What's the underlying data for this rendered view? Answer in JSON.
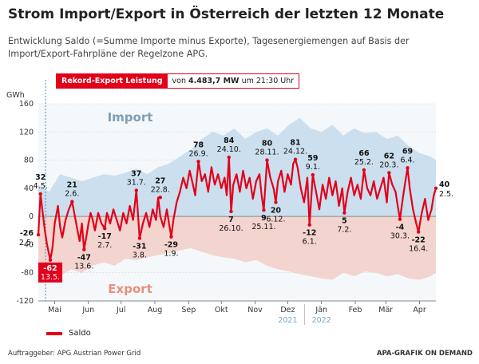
{
  "title": "Strom Import/Export in Österreich der letzten 12 Monate",
  "subtitle": "Entwicklung Saldo (=Summe Importe minus Exporte), Tagesenergiemengen auf Basis der Import/Export-Fahrpläne der Regelzone APG.",
  "record": {
    "label": "Rekord-Export Leistung",
    "prefix": "von",
    "value": "4.483,7 MW",
    "suffix": "um 21:30 Uhr"
  },
  "legend": {
    "saldo": "Saldo"
  },
  "footer": {
    "left": "Auftraggeber: APG Austrian Power Grid",
    "right": "APA-GRAFIK ON DEMAND"
  },
  "colors": {
    "saldo": "#e2001a",
    "import": "#a9cbe3",
    "export": "#f3b6aa",
    "grid": "#d6d6d6"
  },
  "chart_data": {
    "type": "line",
    "ylabel": "GWh",
    "ylim": [
      -120,
      160
    ],
    "yticks": [
      -120,
      -80,
      -40,
      0,
      40,
      80,
      120,
      160
    ],
    "x_range": [
      0,
      365
    ],
    "region_labels": {
      "import": "Import",
      "export": "Export"
    },
    "month_ticks": [
      {
        "label": "Mai",
        "x": 15
      },
      {
        "label": "Jun",
        "x": 46
      },
      {
        "label": "Jul",
        "x": 76
      },
      {
        "label": "Aug",
        "x": 107
      },
      {
        "label": "Sep",
        "x": 138
      },
      {
        "label": "Okt",
        "x": 168
      },
      {
        "label": "Nov",
        "x": 199
      },
      {
        "label": "Dez",
        "x": 229
      },
      {
        "label": "Jän",
        "x": 260
      },
      {
        "label": "Feb",
        "x": 291
      },
      {
        "label": "Mär",
        "x": 319
      },
      {
        "label": "Apr",
        "x": 350
      }
    ],
    "year_labels": [
      {
        "label": "2021",
        "x": 229
      },
      {
        "label": "2022",
        "x": 260
      }
    ],
    "annotations": [
      {
        "value": "-26",
        "date": "2.5.",
        "x": 0,
        "y": -26,
        "pos": "left"
      },
      {
        "value": "32",
        "date": "4.5.",
        "x": 2,
        "y": 32,
        "pos": "above"
      },
      {
        "value": "-62",
        "date": "13.5.",
        "x": 11,
        "y": -62,
        "pos": "boxed"
      },
      {
        "value": "21",
        "date": "2.6.",
        "x": 31,
        "y": 21,
        "pos": "above"
      },
      {
        "value": "-47",
        "date": "13.6.",
        "x": 42,
        "y": -47,
        "pos": "below"
      },
      {
        "value": "-17",
        "date": "2.7.",
        "x": 61,
        "y": -17,
        "pos": "below"
      },
      {
        "value": "37",
        "date": "31.7.",
        "x": 90,
        "y": 37,
        "pos": "above"
      },
      {
        "value": "-31",
        "date": "3.8.",
        "x": 93,
        "y": -31,
        "pos": "below"
      },
      {
        "value": "27",
        "date": "22.8.",
        "x": 112,
        "y": 27,
        "pos": "above"
      },
      {
        "value": "-29",
        "date": "1.9.",
        "x": 122,
        "y": -29,
        "pos": "below"
      },
      {
        "value": "78",
        "date": "26.9.",
        "x": 147,
        "y": 78,
        "pos": "above"
      },
      {
        "value": "84",
        "date": "24.10.",
        "x": 175,
        "y": 84,
        "pos": "above"
      },
      {
        "value": "7",
        "date": "26.10.",
        "x": 177,
        "y": 7,
        "pos": "below"
      },
      {
        "value": "80",
        "date": "28.11.",
        "x": 210,
        "y": 80,
        "pos": "above"
      },
      {
        "value": "9",
        "date": "25.11.",
        "x": 207,
        "y": 9,
        "pos": "below"
      },
      {
        "value": "81",
        "date": "24.12.",
        "x": 236,
        "y": 81,
        "pos": "above"
      },
      {
        "value": "20",
        "date": "6.12.",
        "x": 218,
        "y": 20,
        "pos": "below"
      },
      {
        "value": "59",
        "date": "9.1.",
        "x": 252,
        "y": 59,
        "pos": "above"
      },
      {
        "value": "-12",
        "date": "6.1.",
        "x": 249,
        "y": -12,
        "pos": "below"
      },
      {
        "value": "5",
        "date": "7.2.",
        "x": 281,
        "y": 5,
        "pos": "below"
      },
      {
        "value": "66",
        "date": "25.2.",
        "x": 299,
        "y": 66,
        "pos": "above"
      },
      {
        "value": "62",
        "date": "20.3.",
        "x": 322,
        "y": 62,
        "pos": "above"
      },
      {
        "value": "-4",
        "date": "30.3.",
        "x": 332,
        "y": -4,
        "pos": "below"
      },
      {
        "value": "69",
        "date": "6.4.",
        "x": 339,
        "y": 69,
        "pos": "above"
      },
      {
        "value": "-22",
        "date": "16.4.",
        "x": 349,
        "y": -22,
        "pos": "below"
      },
      {
        "value": "40",
        "date": "2.5.",
        "x": 365,
        "y": 40,
        "pos": "right"
      }
    ],
    "series": [
      {
        "name": "Saldo",
        "x": [
          0,
          2,
          4,
          6,
          8,
          11,
          13,
          15,
          18,
          20,
          22,
          25,
          28,
          31,
          33,
          36,
          38,
          40,
          42,
          44,
          46,
          48,
          50,
          52,
          55,
          58,
          61,
          63,
          66,
          69,
          72,
          75,
          78,
          81,
          84,
          87,
          90,
          93,
          96,
          99,
          102,
          105,
          108,
          110,
          112,
          115,
          118,
          120,
          122,
          124,
          127,
          130,
          133,
          136,
          139,
          142,
          144,
          147,
          150,
          153,
          156,
          159,
          162,
          165,
          168,
          171,
          173,
          175,
          177,
          179,
          182,
          185,
          188,
          191,
          194,
          197,
          200,
          203,
          205,
          207,
          210,
          213,
          216,
          218,
          220,
          223,
          226,
          229,
          232,
          234,
          236,
          238,
          241,
          244,
          247,
          249,
          252,
          255,
          258,
          261,
          264,
          267,
          270,
          273,
          276,
          279,
          281,
          284,
          287,
          290,
          293,
          296,
          299,
          302,
          305,
          308,
          311,
          314,
          317,
          320,
          322,
          325,
          328,
          330,
          332,
          335,
          337,
          339,
          341,
          344,
          347,
          349,
          352,
          355,
          358,
          361,
          363,
          365
        ],
        "y": [
          -26,
          32,
          5,
          -20,
          -40,
          -62,
          -45,
          -10,
          15,
          -15,
          -30,
          -5,
          10,
          21,
          5,
          -20,
          -35,
          -10,
          -47,
          -30,
          -10,
          5,
          -5,
          -20,
          5,
          -10,
          -17,
          5,
          -10,
          10,
          -5,
          -20,
          5,
          -10,
          15,
          -5,
          37,
          -31,
          -10,
          5,
          -15,
          10,
          -5,
          27,
          0,
          -15,
          10,
          -10,
          -29,
          -5,
          20,
          35,
          55,
          40,
          65,
          45,
          30,
          78,
          50,
          60,
          35,
          70,
          45,
          60,
          40,
          55,
          30,
          84,
          7,
          45,
          60,
          35,
          65,
          40,
          55,
          25,
          50,
          60,
          30,
          9,
          80,
          55,
          40,
          20,
          50,
          65,
          35,
          60,
          45,
          75,
          81,
          70,
          40,
          20,
          55,
          -12,
          59,
          35,
          10,
          45,
          25,
          55,
          30,
          50,
          15,
          40,
          5,
          35,
          55,
          30,
          45,
          25,
          66,
          40,
          30,
          50,
          25,
          40,
          55,
          20,
          62,
          45,
          35,
          15,
          -4,
          30,
          50,
          69,
          40,
          10,
          -10,
          -22,
          5,
          25,
          -5,
          10,
          30,
          40
        ]
      },
      {
        "name": "Import",
        "x": [
          0,
          10,
          20,
          30,
          40,
          50,
          60,
          70,
          80,
          90,
          100,
          110,
          120,
          130,
          140,
          150,
          160,
          170,
          180,
          190,
          200,
          210,
          220,
          230,
          240,
          250,
          260,
          270,
          280,
          290,
          300,
          310,
          320,
          330,
          340,
          350,
          360,
          365
        ],
        "y": [
          45,
          35,
          60,
          55,
          50,
          55,
          60,
          58,
          62,
          68,
          60,
          70,
          75,
          85,
          95,
          110,
          120,
          115,
          125,
          110,
          120,
          125,
          115,
          130,
          140,
          125,
          120,
          130,
          115,
          125,
          118,
          120,
          110,
          115,
          100,
          90,
          85,
          80
        ]
      },
      {
        "name": "Export",
        "x": [
          0,
          10,
          20,
          30,
          40,
          50,
          60,
          70,
          80,
          90,
          100,
          110,
          120,
          130,
          140,
          150,
          160,
          170,
          180,
          190,
          200,
          210,
          220,
          230,
          240,
          250,
          260,
          270,
          280,
          290,
          300,
          310,
          320,
          330,
          340,
          350,
          360,
          365
        ],
        "y": [
          -80,
          -90,
          -85,
          -75,
          -80,
          -70,
          -65,
          -70,
          -60,
          -62,
          -58,
          -55,
          -52,
          -48,
          -45,
          -50,
          -55,
          -58,
          -60,
          -65,
          -62,
          -70,
          -75,
          -78,
          -82,
          -85,
          -88,
          -90,
          -80,
          -85,
          -78,
          -80,
          -85,
          -82,
          -88,
          -90,
          -85,
          -80
        ]
      }
    ]
  }
}
